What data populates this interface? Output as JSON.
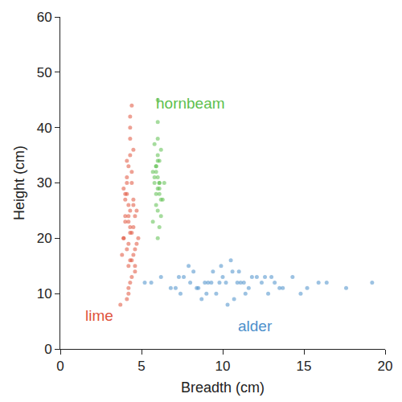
{
  "chart_data": {
    "type": "scatter",
    "x_label": "Breadth (cm)",
    "y_label": "Height (cm)",
    "xlim": [
      0,
      20
    ],
    "xticks": [
      0,
      5,
      10,
      15,
      20
    ],
    "ylim": [
      0,
      60
    ],
    "yticks": [
      0,
      10,
      20,
      30,
      40,
      50,
      60
    ],
    "grid": false,
    "marker": "circle",
    "series": [
      {
        "name": "lime",
        "color": "#e0533d",
        "x": [
          4.3,
          4.1,
          4.5,
          4.2,
          4.4,
          3.9,
          4.6,
          4.3,
          4.0,
          4.2,
          4.7,
          4.4,
          4.1,
          4.3,
          3.8,
          4.5,
          4.2,
          4.6,
          4.0,
          4.3,
          4.4,
          4.1,
          4.8,
          4.2,
          3.9,
          4.5,
          4.3,
          4.0,
          4.4,
          4.2,
          4.6,
          4.1,
          4.3,
          3.7,
          4.5,
          4.2,
          4.4,
          4.0,
          4.3,
          4.1,
          4.7,
          4.2,
          4.4,
          3.9,
          4.3,
          4.5,
          4.1,
          4.2,
          4.6,
          4.3
        ],
        "values": [
          22,
          18,
          26,
          15,
          30,
          20,
          24,
          12,
          28,
          33,
          19,
          21,
          9,
          25,
          17,
          36,
          23,
          14,
          27,
          40,
          16,
          31,
          20,
          11,
          29,
          22,
          38,
          24,
          13,
          26,
          18,
          34,
          21,
          8,
          27,
          19,
          44,
          23,
          16,
          30,
          25,
          10,
          32,
          20,
          35,
          17,
          28,
          24,
          15,
          42
        ]
      },
      {
        "name": "hornbeam",
        "color": "#5dbf4e",
        "x": [
          6.0,
          5.9,
          6.1,
          6.0,
          5.8,
          6.2,
          6.0,
          5.9,
          6.1,
          6.3,
          5.7,
          6.0,
          6.1,
          5.9,
          6.0,
          6.2,
          5.8,
          6.0,
          6.1,
          5.9,
          6.0,
          6.4,
          5.8,
          6.1,
          6.0,
          5.9,
          6.2,
          6.0,
          5.7,
          6.1
        ],
        "values": [
          31,
          28,
          34,
          25,
          30,
          36,
          29,
          33,
          22,
          27,
          32,
          38,
          30,
          26,
          35,
          24,
          31,
          41,
          28,
          33,
          20,
          30,
          37,
          29,
          45,
          32,
          27,
          34,
          23,
          30
        ]
      },
      {
        "name": "alder",
        "color": "#4a8fcb",
        "x": [
          10.2,
          8.5,
          12.1,
          9.3,
          7.4,
          11.0,
          13.5,
          9.8,
          6.2,
          10.7,
          8.9,
          14.3,
          11.6,
          7.9,
          9.1,
          12.8,
          10.0,
          5.6,
          15.2,
          8.2,
          11.3,
          9.6,
          13.0,
          7.1,
          10.5,
          16.4,
          8.7,
          12.4,
          9.4,
          6.8,
          11.8,
          10.9,
          14.8,
          8.0,
          9.9,
          13.7,
          7.6,
          11.1,
          17.6,
          10.3,
          5.2,
          12.6,
          9.0,
          15.9,
          8.4,
          10.6,
          19.2,
          11.4,
          7.3,
          13.2
        ],
        "values": [
          12,
          11,
          13,
          12,
          10,
          14,
          11,
          12,
          13,
          9,
          12,
          13,
          11,
          15,
          12,
          10,
          13,
          12,
          11,
          14,
          12,
          10,
          13,
          11,
          16,
          12,
          9,
          12,
          14,
          11,
          13,
          12,
          10,
          12,
          15,
          11,
          13,
          12,
          11,
          8,
          12,
          13,
          10,
          12,
          11,
          14,
          12,
          10,
          13,
          12
        ]
      }
    ]
  }
}
